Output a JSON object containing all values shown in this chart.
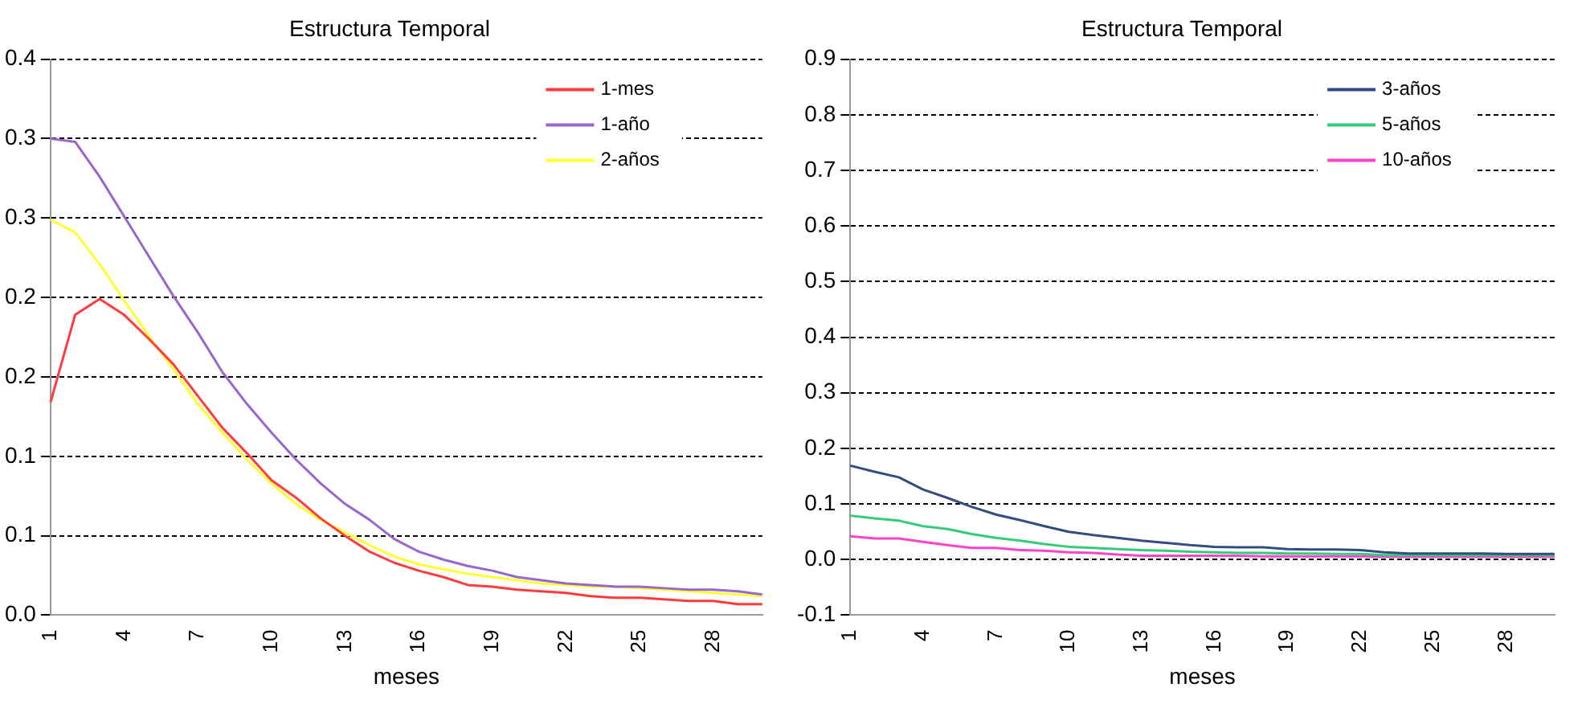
{
  "chart_data": [
    {
      "type": "line",
      "title": "Estructura Temporal",
      "xlabel": "meses",
      "categories": [
        "1",
        null,
        null,
        "4",
        null,
        null,
        "7",
        null,
        null,
        "10",
        null,
        null,
        "13",
        null,
        null,
        "16",
        null,
        null,
        "19",
        null,
        null,
        "22",
        null,
        null,
        "25",
        null,
        null,
        "28",
        null,
        null
      ],
      "series": [
        {
          "name": "1-mes",
          "color": "#ff3b3b",
          "values": [
            0.134,
            0.189,
            0.199,
            0.189,
            0.174,
            0.158,
            0.138,
            0.118,
            0.102,
            0.085,
            0.074,
            0.061,
            0.05,
            0.04,
            0.033,
            0.028,
            0.024,
            0.019,
            0.018,
            0.016,
            0.015,
            0.014,
            0.012,
            0.011,
            0.011,
            0.01,
            0.009,
            0.009,
            0.007,
            0.007
          ]
        },
        {
          "name": "1-año",
          "color": "#9966cc",
          "values": [
            0.3,
            0.298,
            0.276,
            0.251,
            0.226,
            0.201,
            0.178,
            0.153,
            0.133,
            0.115,
            0.098,
            0.083,
            0.07,
            0.06,
            0.048,
            0.04,
            0.035,
            0.031,
            0.028,
            0.024,
            0.022,
            0.02,
            0.019,
            0.018,
            0.018,
            0.017,
            0.016,
            0.016,
            0.015,
            0.013
          ]
        },
        {
          "name": "2-años",
          "color": "#ffff33",
          "values": [
            0.249,
            0.241,
            0.221,
            0.198,
            0.176,
            0.155,
            0.133,
            0.115,
            0.098,
            0.083,
            0.07,
            0.06,
            0.052,
            0.044,
            0.037,
            0.032,
            0.029,
            0.026,
            0.024,
            0.022,
            0.02,
            0.019,
            0.018,
            0.018,
            0.017,
            0.016,
            0.015,
            0.014,
            0.013,
            0.012
          ]
        }
      ],
      "ylim": [
        0,
        0.35
      ],
      "yticks": [
        {
          "value": 0,
          "label": "0.0"
        },
        {
          "value": 0.05,
          "label": "0.1"
        },
        0.1,
        {
          "value": 0.15,
          "label": "0.2"
        },
        0.2,
        {
          "value": 0.25,
          "label": "0.3"
        },
        0.3,
        {
          "value": 0.35,
          "label": "0.4"
        }
      ],
      "grid": "y",
      "legend": "top right",
      "marker": "none",
      "line_style": "solid"
    },
    {
      "type": "line",
      "title": "Estructura Temporal",
      "xlabel": "meses",
      "categories": [
        "1",
        null,
        null,
        "4",
        null,
        null,
        "7",
        null,
        null,
        "10",
        null,
        null,
        "13",
        null,
        null,
        "16",
        null,
        null,
        "19",
        null,
        null,
        "22",
        null,
        null,
        "25",
        null,
        null,
        "28",
        null,
        null
      ],
      "series": [
        {
          "name": "3-años",
          "color": "#334d80",
          "values": [
            0.169,
            0.158,
            0.148,
            0.126,
            0.111,
            0.095,
            0.081,
            0.071,
            0.06,
            0.05,
            0.044,
            0.039,
            0.034,
            0.03,
            0.026,
            0.023,
            0.022,
            0.022,
            0.019,
            0.018,
            0.018,
            0.017,
            0.013,
            0.011,
            0.011,
            0.011,
            0.011,
            0.01,
            0.01,
            0.01
          ]
        },
        {
          "name": "5-años",
          "color": "#33cc77",
          "values": [
            0.079,
            0.074,
            0.07,
            0.06,
            0.055,
            0.046,
            0.039,
            0.034,
            0.028,
            0.023,
            0.021,
            0.019,
            0.017,
            0.016,
            0.014,
            0.013,
            0.012,
            0.012,
            0.011,
            0.011,
            0.01,
            0.01,
            0.008,
            0.008,
            0.008,
            0.008,
            0.008,
            0.008,
            0.008,
            0.008
          ]
        },
        {
          "name": "10-años",
          "color": "#ff44cc",
          "values": [
            0.042,
            0.038,
            0.038,
            0.032,
            0.026,
            0.021,
            0.021,
            0.017,
            0.016,
            0.013,
            0.012,
            0.009,
            0.007,
            0.007,
            0.007,
            0.007,
            0.007,
            0.006,
            0.006,
            0.006,
            0.006,
            0.006,
            0.005,
            0.005,
            0.005,
            0.005,
            0.005,
            0.005,
            0.005,
            0.005
          ]
        }
      ],
      "ylim": [
        -0.1,
        0.9
      ],
      "yticks": [
        -0.1,
        {
          "value": 0,
          "label": "0.0"
        },
        0.1,
        0.2,
        0.3,
        0.4,
        0.5,
        0.6,
        0.7,
        0.8,
        0.9
      ],
      "grid": "y",
      "legend": "top right",
      "marker": "none",
      "line_style": "solid"
    }
  ]
}
